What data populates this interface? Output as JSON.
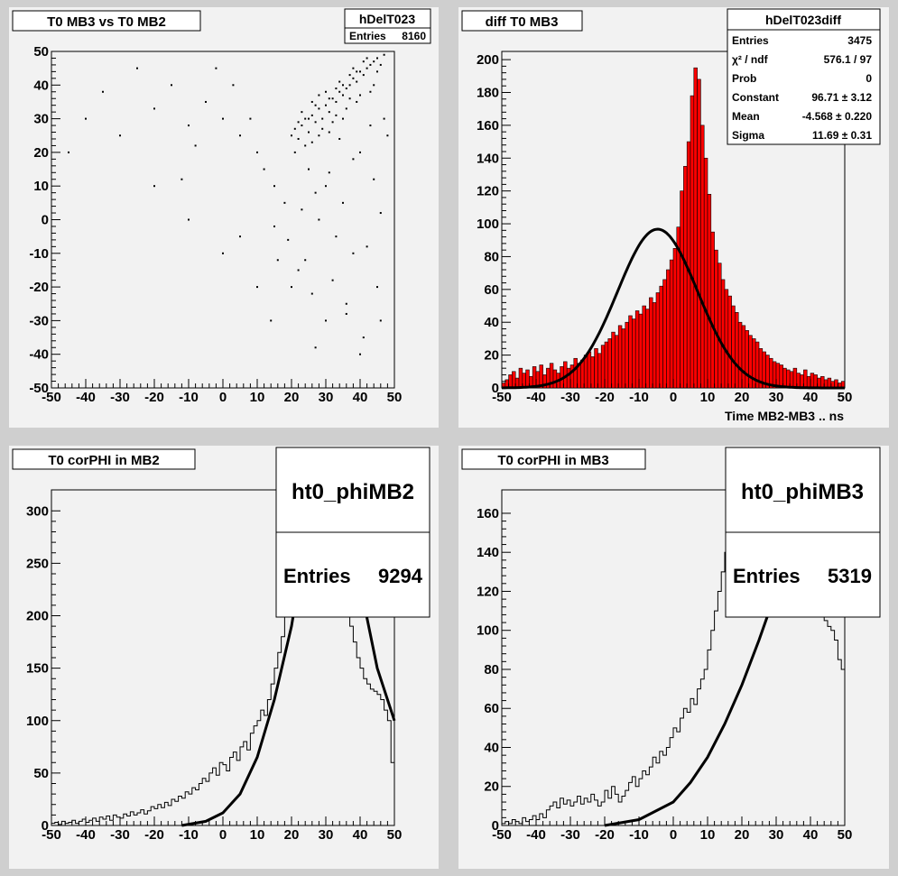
{
  "chart_data": [
    {
      "id": "pad1",
      "type": "scatter",
      "title": "T0 MB3 vs T0 MB2",
      "stats": {
        "name": "hDelT023",
        "rows": [
          [
            "Entries",
            "8160"
          ]
        ]
      },
      "xlim": [
        -50,
        50
      ],
      "ylim": [
        -50,
        50
      ],
      "xticks": [
        "-50",
        "-40",
        "-30",
        "-20",
        "-10",
        "0",
        "10",
        "20",
        "30",
        "40",
        "50"
      ],
      "yticks": [
        "-50",
        "-40",
        "-30",
        "-20",
        "-10",
        "0",
        "10",
        "20",
        "30",
        "40",
        "50"
      ],
      "colors": {
        "points": "#000000"
      },
      "points": [
        [
          20,
          25
        ],
        [
          21,
          27
        ],
        [
          22,
          24
        ],
        [
          23,
          28
        ],
        [
          24,
          30
        ],
        [
          25,
          26
        ],
        [
          26,
          31
        ],
        [
          27,
          29
        ],
        [
          28,
          33
        ],
        [
          29,
          30
        ],
        [
          30,
          34
        ],
        [
          31,
          32
        ],
        [
          32,
          36
        ],
        [
          33,
          35
        ],
        [
          34,
          38
        ],
        [
          35,
          37
        ],
        [
          36,
          39
        ],
        [
          37,
          40
        ],
        [
          38,
          42
        ],
        [
          39,
          41
        ],
        [
          40,
          44
        ],
        [
          41,
          43
        ],
        [
          42,
          45
        ],
        [
          43,
          46
        ],
        [
          44,
          47
        ],
        [
          45,
          48
        ],
        [
          46,
          46
        ],
        [
          47,
          49
        ],
        [
          25,
          30
        ],
        [
          27,
          34
        ],
        [
          29,
          27
        ],
        [
          31,
          36
        ],
        [
          33,
          31
        ],
        [
          35,
          40
        ],
        [
          37,
          36
        ],
        [
          39,
          44
        ],
        [
          22,
          29
        ],
        [
          24,
          22
        ],
        [
          26,
          35
        ],
        [
          28,
          25
        ],
        [
          30,
          38
        ],
        [
          32,
          29
        ],
        [
          34,
          41
        ],
        [
          36,
          33
        ],
        [
          38,
          45
        ],
        [
          40,
          37
        ],
        [
          42,
          48
        ],
        [
          44,
          40
        ],
        [
          21,
          20
        ],
        [
          23,
          32
        ],
        [
          26,
          23
        ],
        [
          28,
          37
        ],
        [
          31,
          26
        ],
        [
          33,
          39
        ],
        [
          35,
          30
        ],
        [
          37,
          43
        ],
        [
          39,
          35
        ],
        [
          41,
          47
        ],
        [
          43,
          38
        ],
        [
          45,
          44
        ],
        [
          30,
          10
        ],
        [
          35,
          5
        ],
        [
          25,
          15
        ],
        [
          40,
          20
        ],
        [
          28,
          0
        ],
        [
          33,
          -5
        ],
        [
          38,
          -10
        ],
        [
          22,
          -15
        ],
        [
          45,
          -20
        ],
        [
          36,
          -25
        ],
        [
          30,
          -30
        ],
        [
          41,
          -35
        ],
        [
          27,
          -38
        ],
        [
          20,
          -20
        ],
        [
          15,
          10
        ],
        [
          10,
          20
        ],
        [
          5,
          25
        ],
        [
          0,
          30
        ],
        [
          -5,
          35
        ],
        [
          -10,
          28
        ],
        [
          -15,
          40
        ],
        [
          -20,
          33
        ],
        [
          -25,
          45
        ],
        [
          -30,
          25
        ],
        [
          -35,
          38
        ],
        [
          -40,
          30
        ],
        [
          -45,
          20
        ],
        [
          -20,
          10
        ],
        [
          -10,
          0
        ],
        [
          0,
          -10
        ],
        [
          10,
          -20
        ],
        [
          5,
          -5
        ],
        [
          15,
          -2
        ],
        [
          18,
          5
        ],
        [
          12,
          15
        ],
        [
          8,
          30
        ],
        [
          3,
          40
        ],
        [
          -2,
          45
        ],
        [
          -8,
          22
        ],
        [
          -12,
          12
        ],
        [
          14,
          -30
        ],
        [
          24,
          -12
        ],
        [
          32,
          -18
        ],
        [
          42,
          -8
        ],
        [
          46,
          2
        ],
        [
          44,
          12
        ],
        [
          48,
          25
        ],
        [
          47,
          30
        ],
        [
          43,
          28
        ],
        [
          38,
          18
        ],
        [
          34,
          24
        ],
        [
          31,
          14
        ],
        [
          27,
          8
        ],
        [
          23,
          3
        ],
        [
          19,
          -6
        ],
        [
          16,
          -12
        ],
        [
          26,
          -22
        ],
        [
          36,
          -28
        ],
        [
          46,
          -30
        ],
        [
          40,
          -40
        ]
      ]
    },
    {
      "id": "pad2",
      "type": "bar",
      "title": "diff T0 MB3",
      "xlabel": "Time MB2-MB3  ..  ns",
      "stats": {
        "name": "hDelT023diff",
        "rows": [
          [
            "Entries",
            "3475"
          ],
          [
            "χ² / ndf",
            "576.1 / 97"
          ],
          [
            "Prob",
            "0"
          ],
          [
            "Constant",
            "96.71 ± 3.12"
          ],
          [
            "Mean",
            "-4.568 ± 0.220"
          ],
          [
            "Sigma",
            "11.69 ± 0.31"
          ]
        ]
      },
      "xlim": [
        -50,
        50
      ],
      "ylim": [
        0,
        205
      ],
      "xticks": [
        "-50",
        "-40",
        "-30",
        "-20",
        "-10",
        "0",
        "10",
        "20",
        "30",
        "40",
        "50"
      ],
      "yticks": [
        "0",
        "20",
        "40",
        "60",
        "80",
        "100",
        "120",
        "140",
        "160",
        "180",
        "200"
      ],
      "colors": {
        "fill": "#ff0000",
        "fit": "#000000"
      },
      "bin_start": -50,
      "bin_width": 1,
      "values": [
        3,
        5,
        8,
        10,
        6,
        12,
        9,
        11,
        7,
        13,
        10,
        14,
        8,
        12,
        15,
        11,
        9,
        13,
        16,
        12,
        14,
        18,
        15,
        17,
        20,
        22,
        19,
        24,
        21,
        26,
        28,
        30,
        34,
        32,
        38,
        36,
        40,
        44,
        42,
        47,
        45,
        50,
        48,
        55,
        52,
        58,
        62,
        66,
        72,
        78,
        85,
        98,
        120,
        135,
        150,
        178,
        195,
        188,
        160,
        140,
        118,
        95,
        84,
        76,
        66,
        60,
        56,
        50,
        46,
        40,
        38,
        35,
        32,
        30,
        28,
        24,
        22,
        20,
        18,
        16,
        15,
        14,
        12,
        11,
        10,
        12,
        9,
        8,
        11,
        7,
        9,
        8,
        6,
        7,
        5,
        6,
        4,
        5,
        3,
        4
      ],
      "fit": {
        "constant": 96.71,
        "mean": -4.568,
        "sigma": 11.69
      }
    },
    {
      "id": "pad3",
      "type": "bar",
      "title": "T0 corPHI in MB2",
      "stats": {
        "name": "ht0_phiMB2",
        "entries_label": "Entries",
        "entries": "9294"
      },
      "xlim": [
        -50,
        50
      ],
      "ylim": [
        0,
        320
      ],
      "xticks": [
        "-50",
        "-40",
        "-30",
        "-20",
        "-10",
        "0",
        "10",
        "20",
        "30",
        "40",
        "50"
      ],
      "yticks": [
        "0",
        "50",
        "100",
        "150",
        "200",
        "250",
        "300"
      ],
      "colors": {
        "line": "#000000",
        "fit": "#000000"
      },
      "bin_start": -50,
      "bin_width": 1,
      "values": [
        2,
        3,
        1,
        4,
        2,
        3,
        5,
        2,
        4,
        6,
        3,
        5,
        7,
        4,
        8,
        6,
        9,
        5,
        10,
        8,
        7,
        11,
        9,
        13,
        10,
        12,
        15,
        11,
        14,
        18,
        16,
        20,
        17,
        22,
        19,
        25,
        23,
        28,
        26,
        32,
        30,
        36,
        34,
        40,
        45,
        42,
        50,
        55,
        48,
        60,
        58,
        52,
        65,
        70,
        62,
        75,
        80,
        72,
        88,
        95,
        100,
        110,
        105,
        120,
        135,
        150,
        165,
        180,
        200,
        230,
        270,
        310,
        320,
        310,
        300,
        290,
        280,
        260,
        250,
        240,
        230,
        225,
        220,
        215,
        210,
        205,
        200,
        190,
        175,
        160,
        150,
        140,
        135,
        130,
        128,
        125,
        120,
        110,
        100,
        60
      ],
      "fit_points": [
        [
          -12,
          0
        ],
        [
          -5,
          4
        ],
        [
          0,
          12
        ],
        [
          5,
          30
        ],
        [
          10,
          65
        ],
        [
          15,
          120
        ],
        [
          20,
          190
        ],
        [
          22,
          230
        ],
        [
          40,
          230
        ],
        [
          45,
          150
        ],
        [
          50,
          100
        ]
      ]
    },
    {
      "id": "pad4",
      "type": "bar",
      "title": "T0 corPHI in MB3",
      "stats": {
        "name": "ht0_phiMB3",
        "entries_label": "Entries",
        "entries": "5319"
      },
      "xlim": [
        -50,
        50
      ],
      "ylim": [
        0,
        172
      ],
      "xticks": [
        "-50",
        "-40",
        "-30",
        "-20",
        "-10",
        "0",
        "10",
        "20",
        "30",
        "40",
        "50"
      ],
      "yticks": [
        "0",
        "20",
        "40",
        "60",
        "80",
        "100",
        "120",
        "140",
        "160"
      ],
      "colors": {
        "line": "#000000",
        "fit": "#000000"
      },
      "bin_start": -50,
      "bin_width": 1,
      "values": [
        1,
        2,
        1,
        3,
        2,
        1,
        4,
        2,
        3,
        5,
        3,
        6,
        4,
        8,
        10,
        12,
        9,
        14,
        11,
        13,
        10,
        12,
        15,
        11,
        14,
        12,
        16,
        13,
        10,
        12,
        18,
        14,
        20,
        16,
        12,
        15,
        18,
        22,
        25,
        20,
        24,
        28,
        26,
        30,
        35,
        32,
        38,
        36,
        40,
        45,
        50,
        48,
        55,
        60,
        58,
        65,
        62,
        70,
        75,
        80,
        90,
        100,
        110,
        120,
        130,
        140,
        150,
        155,
        160,
        165,
        168,
        170,
        172,
        170,
        168,
        165,
        160,
        158,
        155,
        150,
        148,
        145,
        140,
        138,
        135,
        130,
        128,
        125,
        120,
        118,
        115,
        112,
        110,
        108,
        105,
        102,
        100,
        95,
        85,
        80
      ],
      "fit_points": [
        [
          -20,
          0
        ],
        [
          -10,
          3
        ],
        [
          0,
          12
        ],
        [
          5,
          22
        ],
        [
          10,
          35
        ],
        [
          15,
          52
        ],
        [
          20,
          72
        ],
        [
          25,
          95
        ],
        [
          28,
          110
        ]
      ]
    }
  ]
}
